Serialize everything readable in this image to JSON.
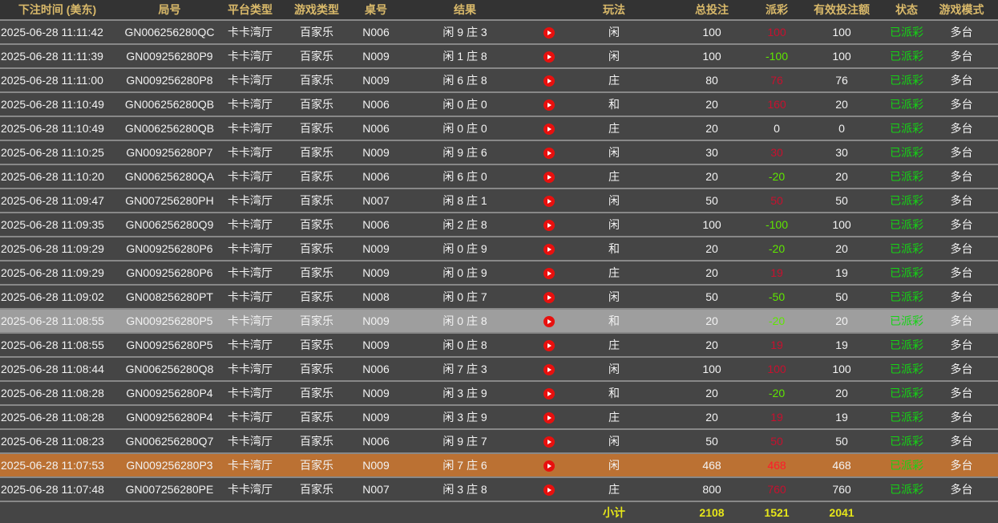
{
  "headers": [
    "下注时间 (美东)",
    "局号",
    "平台类型",
    "游戏类型",
    "桌号",
    "结果",
    "",
    "玩法",
    "总投注",
    "派彩",
    "有效投注额",
    "状态",
    "游戏模式"
  ],
  "colors": {
    "header_text": "#d9b96a",
    "payout_positive": "#c8102e",
    "payout_negative": "#5ee600",
    "status": "#14d414",
    "highlight_gray": "#9e9e9e",
    "highlight_orange": "#bb7133",
    "subtotal": "#e6e619"
  },
  "rows": [
    {
      "time": "2025-06-28 11:11:42",
      "round": "GN006256280QC",
      "platform": "卡卡湾厅",
      "game": "百家乐",
      "table": "N006",
      "result": "闲 9 庄 3",
      "icon": "play-icon",
      "play": "闲",
      "bet": "100",
      "payout": "100",
      "valid": "100",
      "status": "已派彩",
      "mode": "多台",
      "highlight": ""
    },
    {
      "time": "2025-06-28 11:11:39",
      "round": "GN009256280P9",
      "platform": "卡卡湾厅",
      "game": "百家乐",
      "table": "N009",
      "result": "闲 1 庄 8",
      "icon": "play-icon",
      "play": "闲",
      "bet": "100",
      "payout": "-100",
      "valid": "100",
      "status": "已派彩",
      "mode": "多台",
      "highlight": ""
    },
    {
      "time": "2025-06-28 11:11:00",
      "round": "GN009256280P8",
      "platform": "卡卡湾厅",
      "game": "百家乐",
      "table": "N009",
      "result": "闲 6 庄 8",
      "icon": "play-icon",
      "play": "庄",
      "bet": "80",
      "payout": "76",
      "valid": "76",
      "status": "已派彩",
      "mode": "多台",
      "highlight": ""
    },
    {
      "time": "2025-06-28 11:10:49",
      "round": "GN006256280QB",
      "platform": "卡卡湾厅",
      "game": "百家乐",
      "table": "N006",
      "result": "闲 0 庄 0",
      "icon": "play-icon",
      "play": "和",
      "bet": "20",
      "payout": "160",
      "valid": "20",
      "status": "已派彩",
      "mode": "多台",
      "highlight": ""
    },
    {
      "time": "2025-06-28 11:10:49",
      "round": "GN006256280QB",
      "platform": "卡卡湾厅",
      "game": "百家乐",
      "table": "N006",
      "result": "闲 0 庄 0",
      "icon": "play-icon",
      "play": "庄",
      "bet": "20",
      "payout": "0",
      "valid": "0",
      "status": "已派彩",
      "mode": "多台",
      "highlight": ""
    },
    {
      "time": "2025-06-28 11:10:25",
      "round": "GN009256280P7",
      "platform": "卡卡湾厅",
      "game": "百家乐",
      "table": "N009",
      "result": "闲 9 庄 6",
      "icon": "play-icon",
      "play": "闲",
      "bet": "30",
      "payout": "30",
      "valid": "30",
      "status": "已派彩",
      "mode": "多台",
      "highlight": ""
    },
    {
      "time": "2025-06-28 11:10:20",
      "round": "GN006256280QA",
      "platform": "卡卡湾厅",
      "game": "百家乐",
      "table": "N006",
      "result": "闲 6 庄 0",
      "icon": "play-icon",
      "play": "庄",
      "bet": "20",
      "payout": "-20",
      "valid": "20",
      "status": "已派彩",
      "mode": "多台",
      "highlight": ""
    },
    {
      "time": "2025-06-28 11:09:47",
      "round": "GN007256280PH",
      "platform": "卡卡湾厅",
      "game": "百家乐",
      "table": "N007",
      "result": "闲 8 庄 1",
      "icon": "play-icon",
      "play": "闲",
      "bet": "50",
      "payout": "50",
      "valid": "50",
      "status": "已派彩",
      "mode": "多台",
      "highlight": ""
    },
    {
      "time": "2025-06-28 11:09:35",
      "round": "GN006256280Q9",
      "platform": "卡卡湾厅",
      "game": "百家乐",
      "table": "N006",
      "result": "闲 2 庄 8",
      "icon": "play-icon",
      "play": "闲",
      "bet": "100",
      "payout": "-100",
      "valid": "100",
      "status": "已派彩",
      "mode": "多台",
      "highlight": ""
    },
    {
      "time": "2025-06-28 11:09:29",
      "round": "GN009256280P6",
      "platform": "卡卡湾厅",
      "game": "百家乐",
      "table": "N009",
      "result": "闲 0 庄 9",
      "icon": "play-icon",
      "play": "和",
      "bet": "20",
      "payout": "-20",
      "valid": "20",
      "status": "已派彩",
      "mode": "多台",
      "highlight": ""
    },
    {
      "time": "2025-06-28 11:09:29",
      "round": "GN009256280P6",
      "platform": "卡卡湾厅",
      "game": "百家乐",
      "table": "N009",
      "result": "闲 0 庄 9",
      "icon": "play-icon",
      "play": "庄",
      "bet": "20",
      "payout": "19",
      "valid": "19",
      "status": "已派彩",
      "mode": "多台",
      "highlight": ""
    },
    {
      "time": "2025-06-28 11:09:02",
      "round": "GN008256280PT",
      "platform": "卡卡湾厅",
      "game": "百家乐",
      "table": "N008",
      "result": "闲 0 庄 7",
      "icon": "play-icon",
      "play": "闲",
      "bet": "50",
      "payout": "-50",
      "valid": "50",
      "status": "已派彩",
      "mode": "多台",
      "highlight": ""
    },
    {
      "time": "2025-06-28 11:08:55",
      "round": "GN009256280P5",
      "platform": "卡卡湾厅",
      "game": "百家乐",
      "table": "N009",
      "result": "闲 0 庄 8",
      "icon": "play-icon",
      "play": "和",
      "bet": "20",
      "payout": "-20",
      "valid": "20",
      "status": "已派彩",
      "mode": "多台",
      "highlight": "gray"
    },
    {
      "time": "2025-06-28 11:08:55",
      "round": "GN009256280P5",
      "platform": "卡卡湾厅",
      "game": "百家乐",
      "table": "N009",
      "result": "闲 0 庄 8",
      "icon": "play-icon",
      "play": "庄",
      "bet": "20",
      "payout": "19",
      "valid": "19",
      "status": "已派彩",
      "mode": "多台",
      "highlight": ""
    },
    {
      "time": "2025-06-28 11:08:44",
      "round": "GN006256280Q8",
      "platform": "卡卡湾厅",
      "game": "百家乐",
      "table": "N006",
      "result": "闲 7 庄 3",
      "icon": "play-icon",
      "play": "闲",
      "bet": "100",
      "payout": "100",
      "valid": "100",
      "status": "已派彩",
      "mode": "多台",
      "highlight": ""
    },
    {
      "time": "2025-06-28 11:08:28",
      "round": "GN009256280P4",
      "platform": "卡卡湾厅",
      "game": "百家乐",
      "table": "N009",
      "result": "闲 3 庄 9",
      "icon": "play-icon",
      "play": "和",
      "bet": "20",
      "payout": "-20",
      "valid": "20",
      "status": "已派彩",
      "mode": "多台",
      "highlight": ""
    },
    {
      "time": "2025-06-28 11:08:28",
      "round": "GN009256280P4",
      "platform": "卡卡湾厅",
      "game": "百家乐",
      "table": "N009",
      "result": "闲 3 庄 9",
      "icon": "play-icon",
      "play": "庄",
      "bet": "20",
      "payout": "19",
      "valid": "19",
      "status": "已派彩",
      "mode": "多台",
      "highlight": ""
    },
    {
      "time": "2025-06-28 11:08:23",
      "round": "GN006256280Q7",
      "platform": "卡卡湾厅",
      "game": "百家乐",
      "table": "N006",
      "result": "闲 9 庄 7",
      "icon": "play-icon",
      "play": "闲",
      "bet": "50",
      "payout": "50",
      "valid": "50",
      "status": "已派彩",
      "mode": "多台",
      "highlight": ""
    },
    {
      "time": "2025-06-28 11:07:53",
      "round": "GN009256280P3",
      "platform": "卡卡湾厅",
      "game": "百家乐",
      "table": "N009",
      "result": "闲 7 庄 6",
      "icon": "play-icon",
      "play": "闲",
      "bet": "468",
      "payout": "468",
      "valid": "468",
      "status": "已派彩",
      "mode": "多台",
      "highlight": "orange"
    },
    {
      "time": "2025-06-28 11:07:48",
      "round": "GN007256280PE",
      "platform": "卡卡湾厅",
      "game": "百家乐",
      "table": "N007",
      "result": "闲 3 庄 8",
      "icon": "play-icon",
      "play": "庄",
      "bet": "800",
      "payout": "760",
      "valid": "760",
      "status": "已派彩",
      "mode": "多台",
      "highlight": ""
    }
  ],
  "subtotal": {
    "label": "小计",
    "bet": "2108",
    "payout": "1521",
    "valid": "2041"
  }
}
